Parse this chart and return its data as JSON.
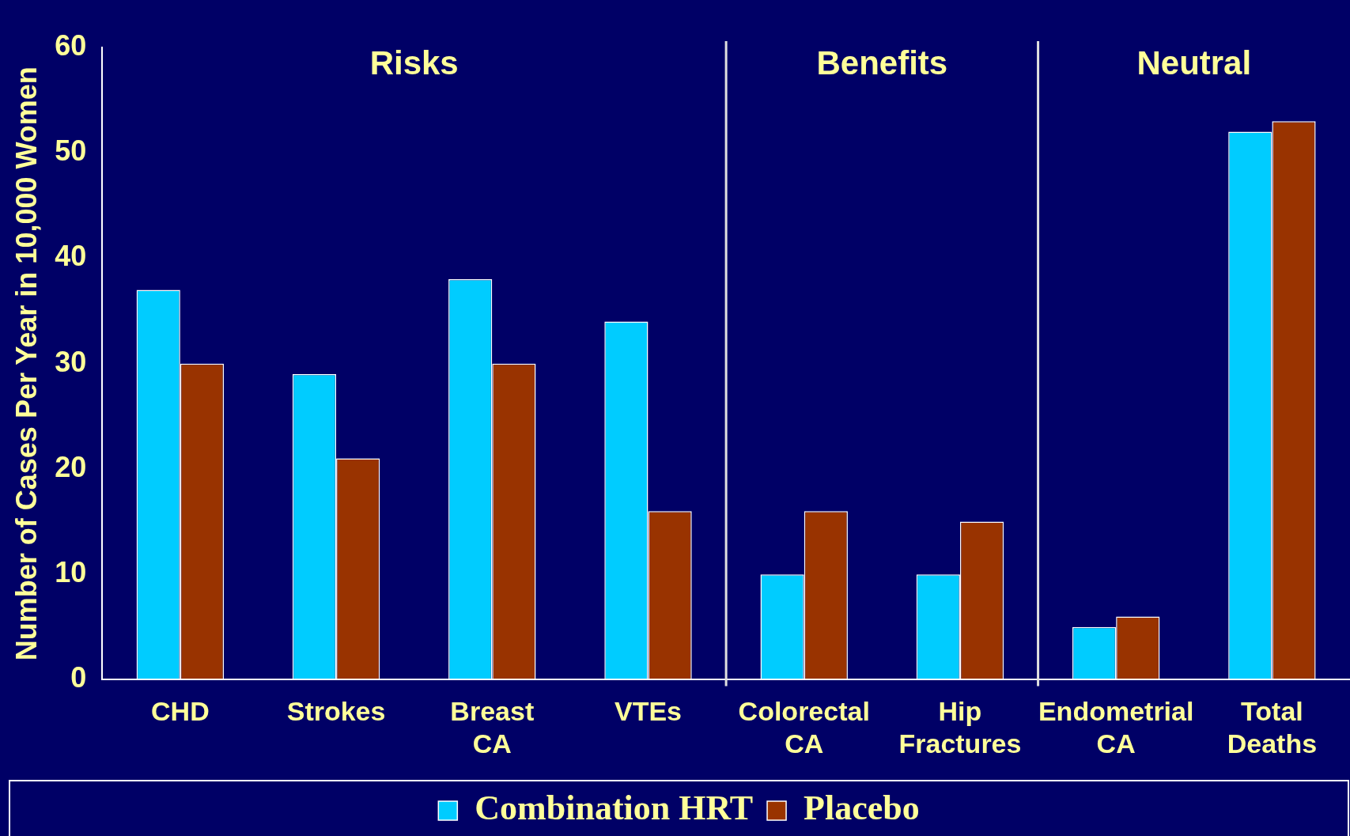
{
  "chart_data": {
    "type": "bar",
    "ylabel": "Number of Cases Per Year in 10,000 Women",
    "categories": [
      "CHD",
      "Strokes",
      "Breast CA",
      "VTEs",
      "Colorectal CA",
      "Hip Fractures",
      "Endometrial CA",
      "Total Deaths"
    ],
    "series": [
      {
        "name": "Combination HRT",
        "color": "#00ccff",
        "values": [
          37,
          29,
          38,
          34,
          10,
          10,
          5,
          52
        ]
      },
      {
        "name": "Placebo",
        "color": "#993300",
        "values": [
          30,
          21,
          30,
          16,
          16,
          15,
          6,
          53
        ]
      }
    ],
    "ylim": [
      0,
      60
    ],
    "yticks": [
      0,
      10,
      20,
      30,
      40,
      50,
      60
    ],
    "grid": false,
    "legend": "bottom",
    "annotations": [
      "Risks",
      "Benefits",
      "Neutral"
    ]
  }
}
